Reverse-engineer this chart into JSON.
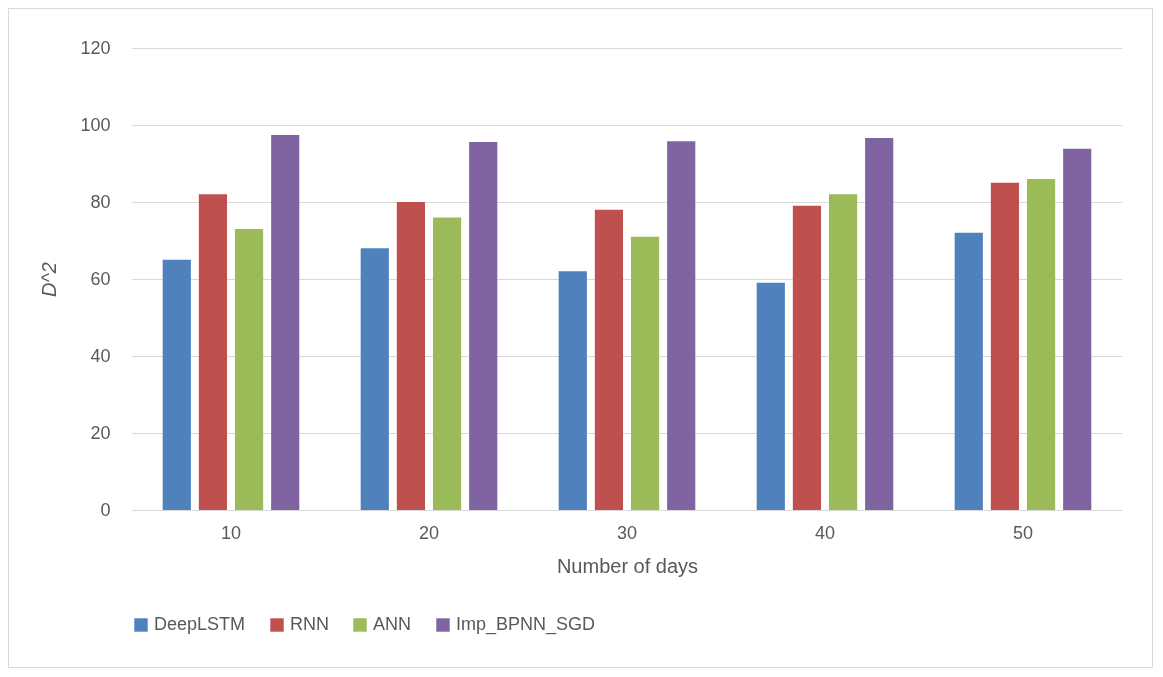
{
  "chart_data": {
    "type": "bar",
    "xlabel": "Number of days",
    "ylabel": "D^2",
    "categories": [
      "10",
      "20",
      "30",
      "40",
      "50"
    ],
    "series": [
      {
        "name": "DeepLSTM",
        "color": "#4f81bd",
        "values": [
          65,
          68,
          62,
          59,
          72
        ]
      },
      {
        "name": "RNN",
        "color": "#c0504d",
        "values": [
          82,
          80,
          78,
          79,
          85
        ]
      },
      {
        "name": "ANN",
        "color": "#9bbb59",
        "values": [
          73,
          76,
          71,
          82,
          86
        ]
      },
      {
        "name": "Imp_BPNN_SGD",
        "color": "#8064a2",
        "values": [
          97.4,
          95.6,
          95.8,
          96.6,
          93.8
        ]
      }
    ],
    "ylim": [
      0,
      120
    ],
    "yticks": [
      0,
      20,
      40,
      60,
      80,
      100,
      120
    ],
    "grid": "y",
    "legend": "bottom"
  }
}
